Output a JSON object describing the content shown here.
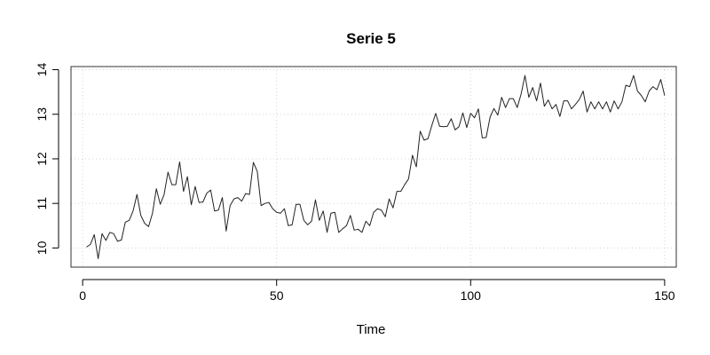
{
  "chart_data": {
    "type": "line",
    "title": "Serie 5",
    "xlabel": "Time",
    "ylabel": "",
    "xlim": [
      -3,
      153
    ],
    "ylim": [
      9.57,
      14.07
    ],
    "xticks": [
      0,
      50,
      100,
      150
    ],
    "yticks": [
      10,
      11,
      12,
      13,
      14
    ],
    "grid": true,
    "series": [
      {
        "x": [
          1,
          2,
          3,
          4,
          5,
          6,
          7,
          8,
          9,
          10,
          11,
          12,
          13,
          14,
          15,
          16,
          17,
          18,
          19,
          20,
          21,
          22,
          23,
          24,
          25,
          26,
          27,
          28,
          29,
          30,
          31,
          32,
          33,
          34,
          35,
          36,
          37,
          38,
          39,
          40,
          41,
          42,
          43,
          44,
          45,
          46,
          47,
          48,
          49,
          50,
          51,
          52,
          53,
          54,
          55,
          56,
          57,
          58,
          59,
          60,
          61,
          62,
          63,
          64,
          65,
          66,
          67,
          68,
          69,
          70,
          71,
          72,
          73,
          74,
          75,
          76,
          77,
          78,
          79,
          80,
          81,
          82,
          83,
          84,
          85,
          86,
          87,
          88,
          89,
          90,
          91,
          92,
          93,
          94,
          95,
          96,
          97,
          98,
          99,
          100,
          101,
          102,
          103,
          104,
          105,
          106,
          107,
          108,
          109,
          110,
          111,
          112,
          113,
          114,
          115,
          116,
          117,
          118,
          119,
          120,
          121,
          122,
          123,
          124,
          125,
          126,
          127,
          128,
          129,
          130,
          131,
          132,
          133,
          134,
          135,
          136,
          137,
          138,
          139,
          140,
          141,
          142,
          143,
          144,
          145,
          146,
          147,
          148,
          149,
          150
        ],
        "values": [
          10.02,
          10.08,
          10.3,
          9.76,
          10.32,
          10.17,
          10.35,
          10.32,
          10.15,
          10.18,
          10.58,
          10.62,
          10.83,
          11.2,
          10.73,
          10.55,
          10.48,
          10.78,
          11.33,
          10.98,
          11.2,
          11.7,
          11.42,
          11.42,
          11.93,
          11.27,
          11.6,
          10.97,
          11.38,
          11.02,
          11.03,
          11.23,
          11.3,
          10.83,
          10.85,
          11.13,
          10.38,
          10.95,
          11.1,
          11.13,
          11.05,
          11.22,
          11.2,
          11.92,
          11.72,
          10.95,
          11.0,
          11.02,
          10.88,
          10.8,
          10.78,
          10.88,
          10.5,
          10.52,
          10.98,
          10.98,
          10.62,
          10.52,
          10.6,
          11.08,
          10.62,
          10.83,
          10.35,
          10.78,
          10.8,
          10.35,
          10.43,
          10.5,
          10.73,
          10.4,
          10.42,
          10.35,
          10.6,
          10.5,
          10.8,
          10.88,
          10.85,
          10.7,
          11.1,
          10.9,
          11.27,
          11.27,
          11.42,
          11.55,
          12.08,
          11.82,
          12.62,
          12.42,
          12.45,
          12.75,
          13.02,
          12.73,
          12.72,
          12.73,
          12.9,
          12.65,
          12.72,
          13.03,
          12.7,
          13.02,
          12.92,
          13.12,
          12.47,
          12.48,
          12.93,
          13.13,
          12.98,
          13.38,
          13.15,
          13.35,
          13.35,
          13.15,
          13.45,
          13.87,
          13.38,
          13.6,
          13.3,
          13.7,
          13.18,
          13.32,
          13.12,
          13.22,
          12.95,
          13.3,
          13.3,
          13.12,
          13.22,
          13.33,
          13.52,
          13.05,
          13.28,
          13.12,
          13.28,
          13.12,
          13.28,
          13.05,
          13.3,
          13.12,
          13.28,
          13.65,
          13.62,
          13.87,
          13.52,
          13.42,
          13.28,
          13.52,
          13.62,
          13.55,
          13.78,
          13.42
        ]
      }
    ]
  }
}
